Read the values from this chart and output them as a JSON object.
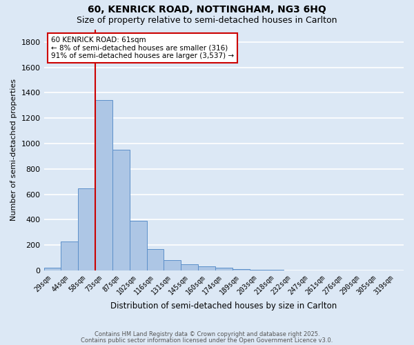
{
  "title1": "60, KENRICK ROAD, NOTTINGHAM, NG3 6HQ",
  "title2": "Size of property relative to semi-detached houses in Carlton",
  "xlabel": "Distribution of semi-detached houses by size in Carlton",
  "ylabel": "Number of semi-detached properties",
  "categories": [
    "29sqm",
    "44sqm",
    "58sqm",
    "73sqm",
    "87sqm",
    "102sqm",
    "116sqm",
    "131sqm",
    "145sqm",
    "160sqm",
    "174sqm",
    "189sqm",
    "203sqm",
    "218sqm",
    "232sqm",
    "247sqm",
    "261sqm",
    "276sqm",
    "290sqm",
    "305sqm",
    "319sqm"
  ],
  "values": [
    20,
    230,
    645,
    1340,
    950,
    390,
    165,
    80,
    48,
    30,
    20,
    8,
    3,
    2,
    1,
    1,
    0,
    0,
    0,
    0,
    0
  ],
  "bar_color": "#adc6e5",
  "bar_edge_color": "#5b8fc9",
  "background_color": "#dce8f5",
  "grid_color": "#ffffff",
  "vline_color": "#cc0000",
  "annotation_text": "60 KENRICK ROAD: 61sqm\n← 8% of semi-detached houses are smaller (316)\n91% of semi-detached houses are larger (3,537) →",
  "annotation_box_color": "#ffffff",
  "annotation_box_edge": "#cc0000",
  "ylim": [
    0,
    1900
  ],
  "yticks": [
    0,
    200,
    400,
    600,
    800,
    1000,
    1200,
    1400,
    1600,
    1800
  ],
  "footnote1": "Contains HM Land Registry data © Crown copyright and database right 2025.",
  "footnote2": "Contains public sector information licensed under the Open Government Licence v3.0."
}
